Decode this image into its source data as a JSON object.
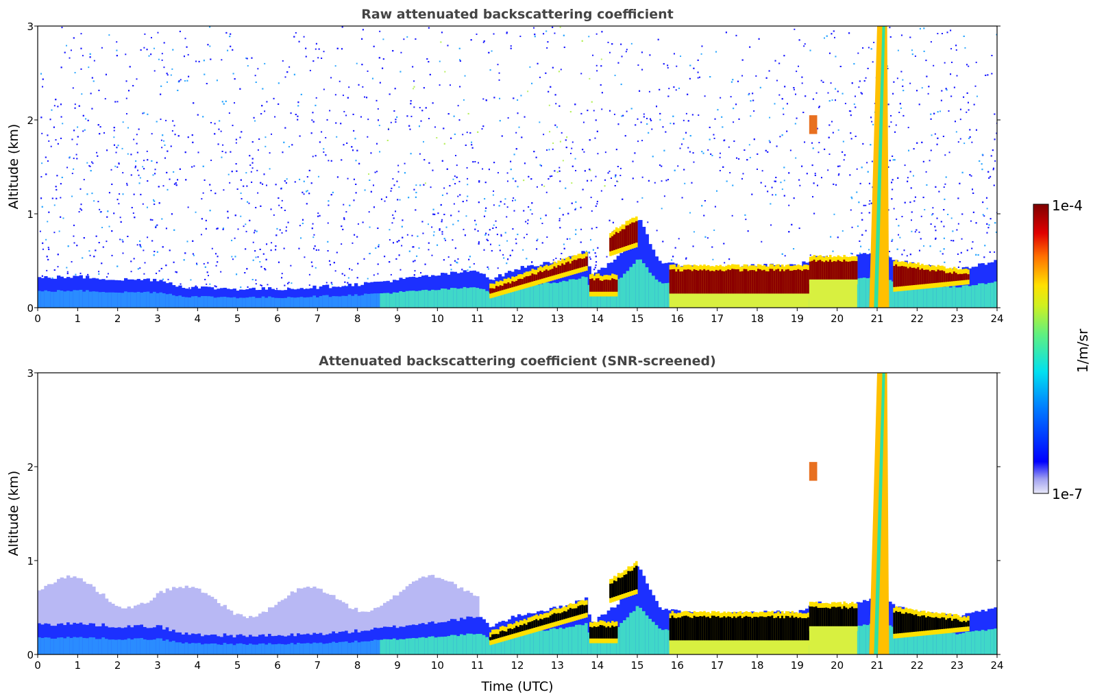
{
  "chart_data": [
    {
      "type": "heatmap",
      "title": "Raw attenuated backscattering coefficient",
      "xlabel": "",
      "ylabel": "Altitude (km)",
      "xlim": [
        0,
        24
      ],
      "ylim": [
        0,
        3
      ],
      "x_ticks": [
        "0",
        "1",
        "2",
        "3",
        "4",
        "5",
        "6",
        "7",
        "8",
        "9",
        "10",
        "11",
        "12",
        "13",
        "14",
        "15",
        "16",
        "17",
        "18",
        "19",
        "20",
        "21",
        "22",
        "23",
        "24"
      ],
      "y_ticks": [
        "0",
        "1",
        "2",
        "3"
      ],
      "screened": false,
      "features": {
        "boundary_layer_top_km": [
          [
            0,
            0.32
          ],
          [
            1,
            0.33
          ],
          [
            2,
            0.3
          ],
          [
            3,
            0.3
          ],
          [
            3.6,
            0.22
          ],
          [
            5,
            0.2
          ],
          [
            6,
            0.2
          ],
          [
            7,
            0.22
          ],
          [
            8,
            0.25
          ],
          [
            9,
            0.3
          ],
          [
            10,
            0.35
          ],
          [
            11,
            0.4
          ],
          [
            11.3,
            0.3
          ],
          [
            12,
            0.42
          ],
          [
            13,
            0.5
          ],
          [
            13.7,
            0.6
          ],
          [
            13.8,
            0.32
          ],
          [
            14.5,
            0.55
          ],
          [
            15,
            0.95
          ],
          [
            15.5,
            0.5
          ],
          [
            16,
            0.45
          ],
          [
            17,
            0.42
          ],
          [
            18,
            0.45
          ],
          [
            19,
            0.45
          ],
          [
            19.5,
            0.55
          ],
          [
            20,
            0.5
          ],
          [
            20.5,
            0.55
          ],
          [
            21,
            0.6
          ],
          [
            21.5,
            0.5
          ],
          [
            22,
            0.45
          ],
          [
            23,
            0.4
          ],
          [
            23.5,
            0.45
          ],
          [
            24,
            0.5
          ]
        ],
        "cloud_layer": [
          {
            "start_h": 11.3,
            "end_h": 13.75,
            "base_km": [
              0.15,
              0.45
            ],
            "top_km": [
              0.2,
              0.55
            ]
          },
          {
            "start_h": 13.8,
            "end_h": 14.5,
            "base_km": [
              0.17,
              0.17
            ],
            "top_km": [
              0.3,
              0.3
            ]
          },
          {
            "start_h": 14.3,
            "end_h": 15.0,
            "base_km": [
              0.6,
              0.7
            ],
            "top_km": [
              0.75,
              0.95
            ]
          },
          {
            "start_h": 15.8,
            "end_h": 19.3,
            "base_km": [
              0.15,
              0.15
            ],
            "top_km": [
              0.4,
              0.4
            ]
          },
          {
            "start_h": 19.3,
            "end_h": 20.5,
            "base_km": [
              0.3,
              0.3
            ],
            "top_km": [
              0.5,
              0.5
            ]
          },
          {
            "start_h": 21.4,
            "end_h": 23.3,
            "base_km": [
              0.22,
              0.3
            ],
            "top_km": [
              0.45,
              0.35
            ]
          }
        ],
        "precipitation_shaft_h": [
          20.8,
          21.25
        ],
        "elevated_patch": {
          "time_h": 19.4,
          "alt_km": [
            1.85,
            2.05
          ]
        }
      }
    },
    {
      "type": "heatmap",
      "title": "Attenuated backscattering coefficient (SNR-screened)",
      "xlabel": "Time (UTC)",
      "ylabel": "Altitude (km)",
      "xlim": [
        0,
        24
      ],
      "ylim": [
        0,
        3
      ],
      "x_ticks": [
        "0",
        "1",
        "2",
        "3",
        "4",
        "5",
        "6",
        "7",
        "8",
        "9",
        "10",
        "11",
        "12",
        "13",
        "14",
        "15",
        "16",
        "17",
        "18",
        "19",
        "20",
        "21",
        "22",
        "23",
        "24"
      ],
      "y_ticks": [
        "0",
        "1",
        "2",
        "3"
      ],
      "screened": true
    }
  ],
  "colorbar": {
    "label": "1/m/sr",
    "max_label": "1e-4",
    "min_label": "1e-7",
    "colormap": "jet"
  },
  "colors": {
    "title": "#444444",
    "cloud_core_raw": "#8b0000",
    "cloud_core_screened": "#000000",
    "background_noise": "#1414ff"
  }
}
